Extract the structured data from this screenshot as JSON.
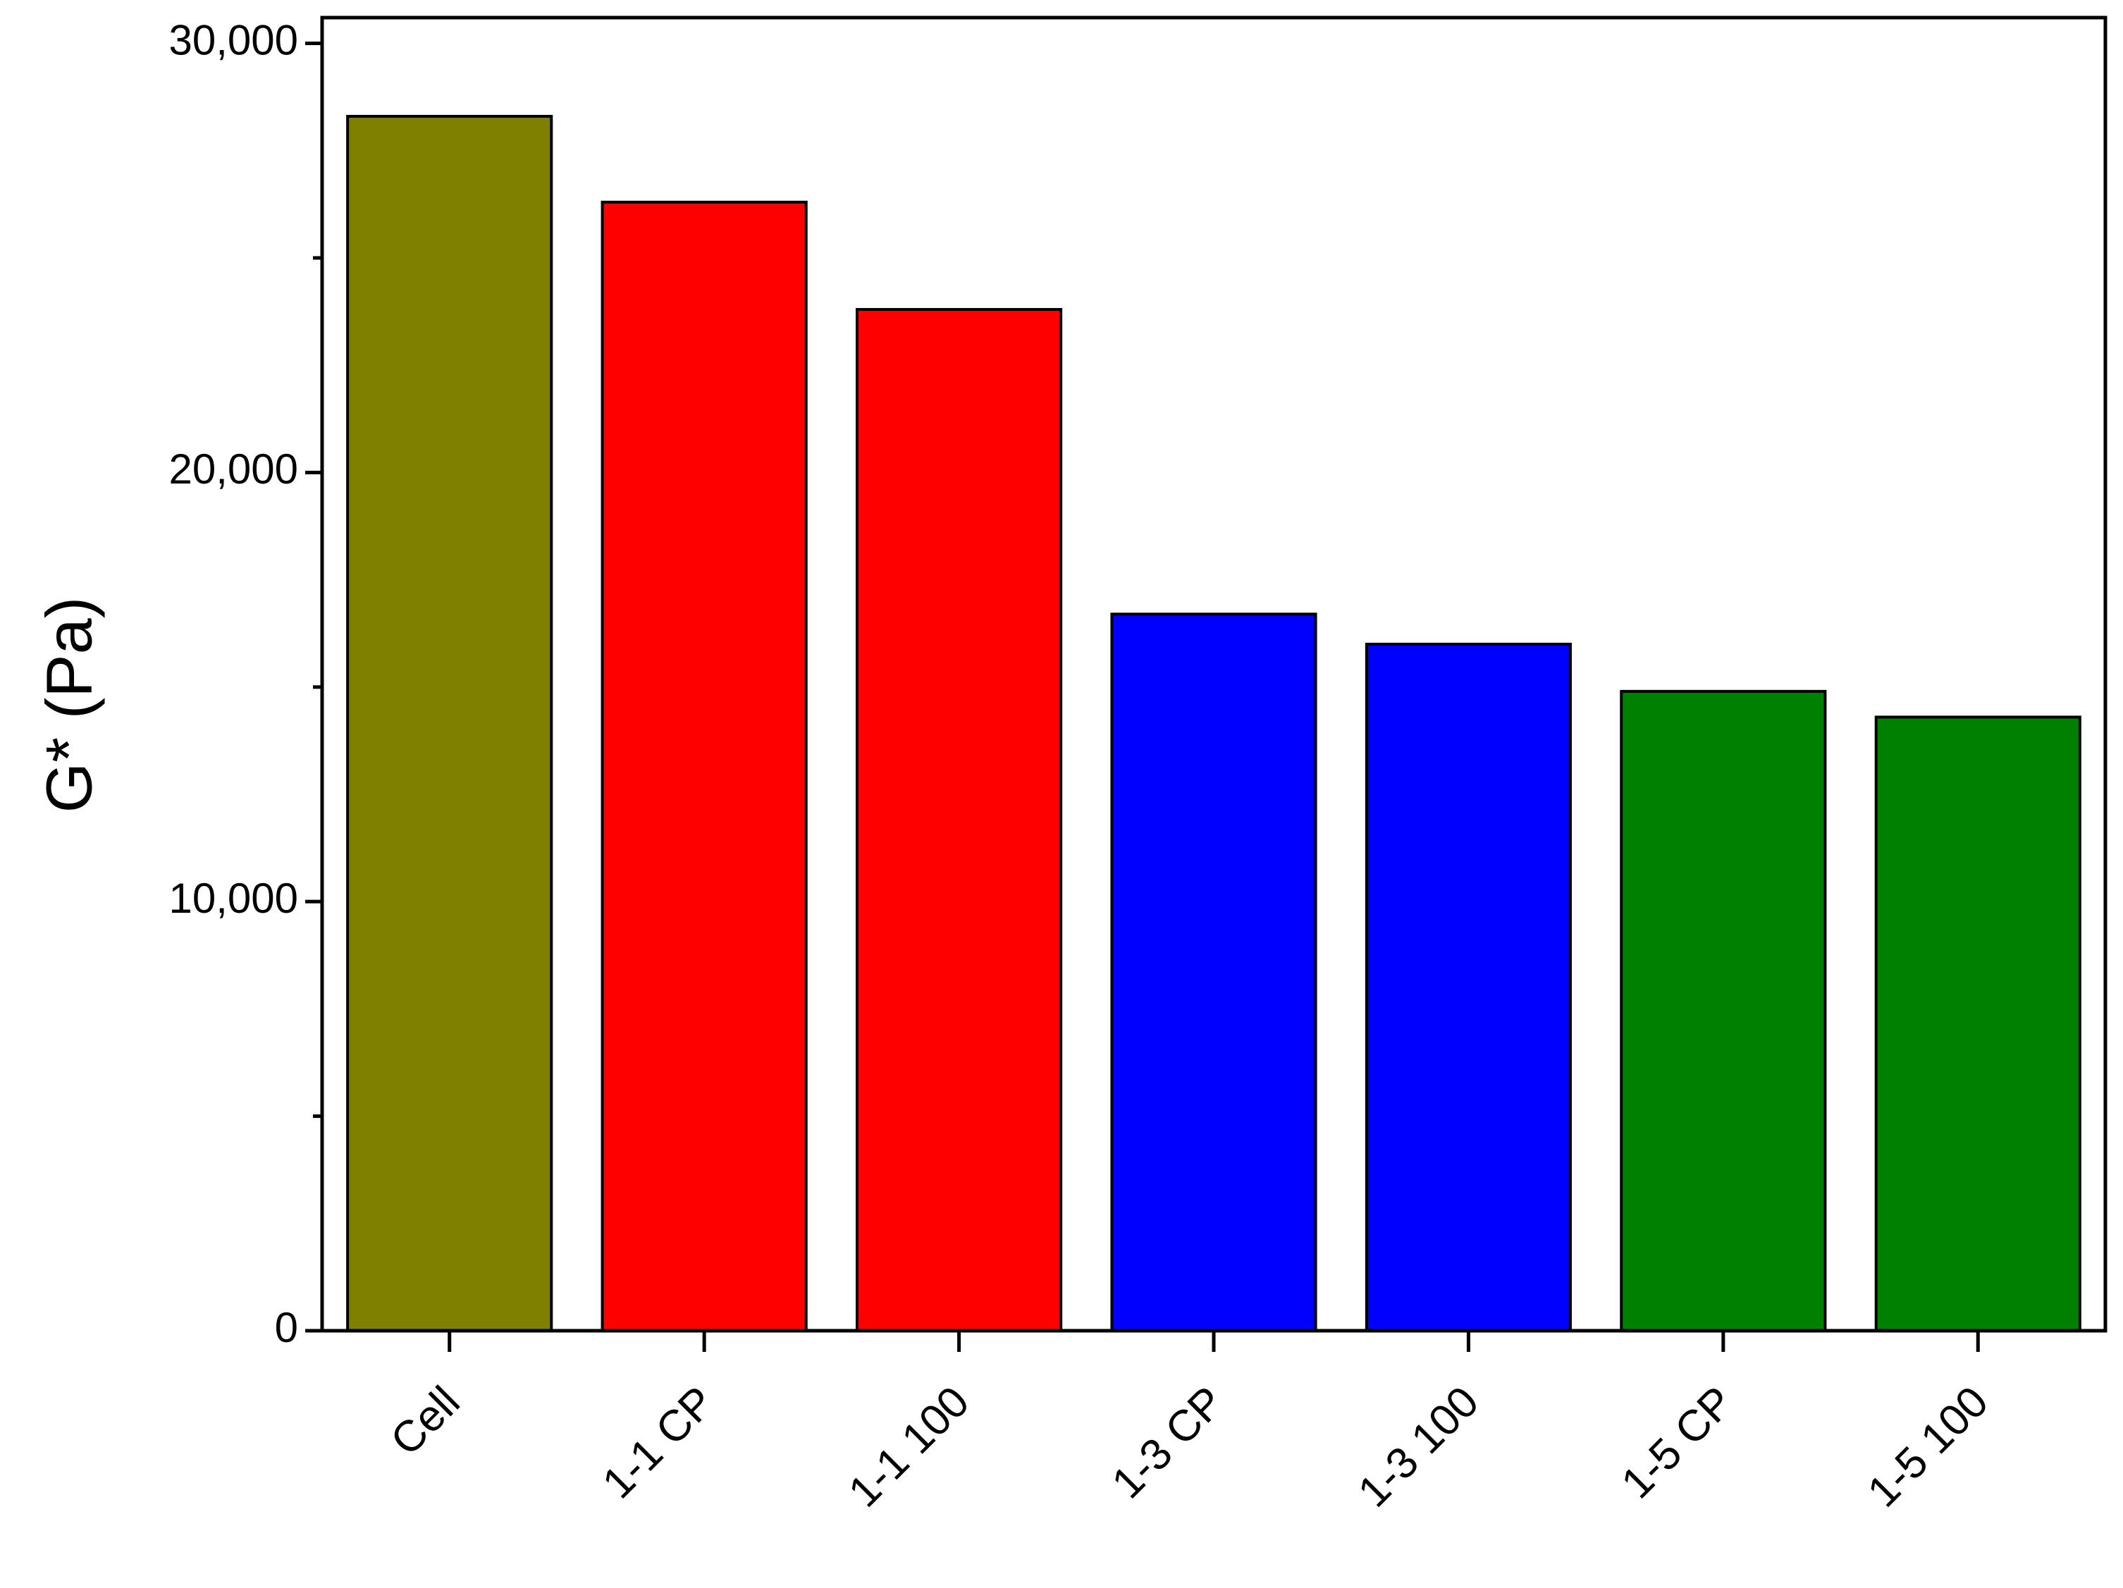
{
  "chart_data": {
    "type": "bar",
    "ylabel": "G* (Pa)",
    "categories": [
      "Cell",
      "1-1 CP",
      "1-1 100",
      "1-3 CP",
      "1-3 100",
      "1-5 CP",
      "1-5 100"
    ],
    "values": [
      28300,
      26300,
      23800,
      16700,
      16000,
      14900,
      14300
    ],
    "colors": [
      "#808000",
      "#ff0000",
      "#ff0000",
      "#0000ff",
      "#0000ff",
      "#008000",
      "#008000"
    ],
    "ylim": [
      0,
      30600
    ],
    "yticks": [
      {
        "value": 0,
        "label": "0"
      },
      {
        "value": 10000,
        "label": "10,000"
      },
      {
        "value": 20000,
        "label": "20,000"
      },
      {
        "value": 30000,
        "label": "30,000"
      }
    ],
    "minor_yticks": [
      5000,
      15000,
      25000
    ],
    "grid": false
  }
}
